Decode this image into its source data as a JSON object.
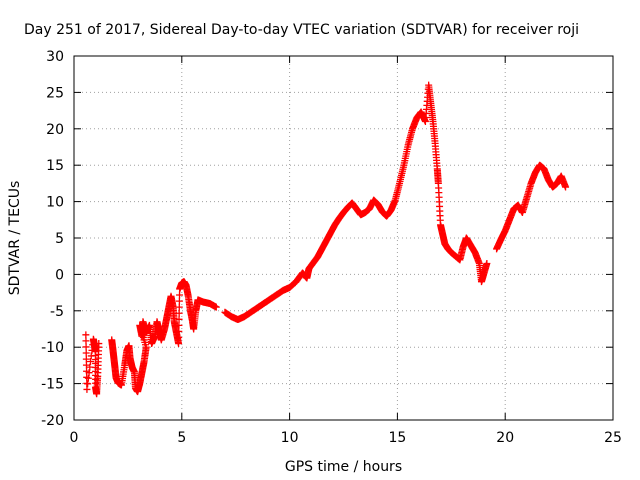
{
  "chart_data": {
    "type": "scatter",
    "title": "Day 251 of 2017, Sidereal Day-to-day VTEC variation (SDTVAR) for receiver roji",
    "xlabel": "GPS time / hours",
    "ylabel": "SDTVAR / TECUs",
    "xlim": [
      0,
      25
    ],
    "ylim": [
      -20,
      30
    ],
    "xticks": [
      0,
      5,
      10,
      15,
      20,
      25
    ],
    "xtick_labels": [
      "0",
      "5",
      "10",
      "15",
      "20",
      "25"
    ],
    "yticks": [
      -20,
      -15,
      -10,
      -5,
      0,
      5,
      10,
      15,
      20,
      25,
      30
    ],
    "ytick_labels": [
      "-20",
      "-15",
      "-10",
      "-5",
      "0",
      "5",
      "10",
      "15",
      "20",
      "25",
      "30"
    ],
    "grid": true,
    "marker": "+",
    "series": [
      {
        "name": "SDTVAR",
        "color": "#ff0000",
        "points": [
          [
            0.55,
            -8.3
          ],
          [
            0.6,
            -15.8
          ],
          [
            0.9,
            -8.9
          ],
          [
            0.95,
            -9.8
          ],
          [
            1.0,
            -10.6
          ],
          [
            1.0,
            -15.5
          ],
          [
            1.05,
            -16.4
          ],
          [
            1.1,
            -14.0
          ],
          [
            1.15,
            -9.5
          ],
          [
            1.75,
            -9.0
          ],
          [
            1.8,
            -10.2
          ],
          [
            1.85,
            -11.5
          ],
          [
            1.9,
            -12.8
          ],
          [
            1.95,
            -14.2
          ],
          [
            2.05,
            -14.9
          ],
          [
            2.2,
            -15.2
          ],
          [
            2.35,
            -12.5
          ],
          [
            2.45,
            -10.5
          ],
          [
            2.55,
            -9.8
          ],
          [
            2.6,
            -11.5
          ],
          [
            2.7,
            -12.8
          ],
          [
            2.8,
            -13.4
          ],
          [
            2.85,
            -15.6
          ],
          [
            2.95,
            -16.1
          ],
          [
            3.05,
            -15.0
          ],
          [
            3.15,
            -13.5
          ],
          [
            3.25,
            -12.0
          ],
          [
            3.35,
            -10.0
          ],
          [
            3.05,
            -7.0
          ],
          [
            3.15,
            -8.5
          ],
          [
            3.2,
            -6.5
          ],
          [
            3.35,
            -8.0
          ],
          [
            3.5,
            -7.0
          ],
          [
            3.6,
            -9.5
          ],
          [
            3.75,
            -8.5
          ],
          [
            3.85,
            -6.5
          ],
          [
            3.95,
            -7.8
          ],
          [
            4.05,
            -9.0
          ],
          [
            4.2,
            -7.5
          ],
          [
            4.3,
            -6.0
          ],
          [
            4.4,
            -4.5
          ],
          [
            4.5,
            -3.0
          ],
          [
            4.6,
            -4.5
          ],
          [
            4.65,
            -6.5
          ],
          [
            4.75,
            -8.0
          ],
          [
            4.85,
            -9.5
          ],
          [
            4.9,
            -2.0
          ],
          [
            5.0,
            -1.2
          ],
          [
            5.1,
            -1.0
          ],
          [
            5.2,
            -1.5
          ],
          [
            5.3,
            -3.0
          ],
          [
            5.4,
            -5.0
          ],
          [
            5.5,
            -6.5
          ],
          [
            5.55,
            -7.5
          ],
          [
            5.65,
            -5.0
          ],
          [
            5.75,
            -3.5
          ],
          [
            6.0,
            -3.8
          ],
          [
            6.3,
            -4.0
          ],
          [
            6.6,
            -4.5
          ],
          [
            7.0,
            -5.2
          ],
          [
            7.3,
            -5.8
          ],
          [
            7.6,
            -6.2
          ],
          [
            7.9,
            -5.8
          ],
          [
            8.2,
            -5.2
          ],
          [
            8.5,
            -4.6
          ],
          [
            8.8,
            -4.0
          ],
          [
            9.1,
            -3.4
          ],
          [
            9.4,
            -2.8
          ],
          [
            9.7,
            -2.2
          ],
          [
            10.0,
            -1.8
          ],
          [
            10.3,
            -1.0
          ],
          [
            10.6,
            0.2
          ],
          [
            10.8,
            -0.5
          ],
          [
            10.9,
            0.8
          ],
          [
            11.1,
            1.6
          ],
          [
            11.3,
            2.4
          ],
          [
            11.5,
            3.5
          ],
          [
            11.7,
            4.6
          ],
          [
            11.9,
            5.7
          ],
          [
            12.1,
            6.8
          ],
          [
            12.3,
            7.7
          ],
          [
            12.5,
            8.5
          ],
          [
            12.7,
            9.2
          ],
          [
            12.9,
            9.8
          ],
          [
            13.1,
            9.0
          ],
          [
            13.3,
            8.2
          ],
          [
            13.5,
            8.5
          ],
          [
            13.7,
            9.0
          ],
          [
            13.9,
            10.2
          ],
          [
            14.1,
            9.6
          ],
          [
            14.3,
            8.6
          ],
          [
            14.5,
            8.0
          ],
          [
            14.7,
            8.8
          ],
          [
            14.9,
            10.2
          ],
          [
            15.1,
            12.5
          ],
          [
            15.3,
            15.0
          ],
          [
            15.5,
            17.8
          ],
          [
            15.7,
            20.0
          ],
          [
            15.9,
            21.5
          ],
          [
            16.1,
            22.3
          ],
          [
            16.3,
            21.0
          ],
          [
            16.45,
            26.0
          ],
          [
            16.55,
            23.5
          ],
          [
            16.65,
            21.0
          ],
          [
            16.75,
            18.0
          ],
          [
            16.85,
            14.5
          ],
          [
            16.9,
            12.5
          ],
          [
            17.0,
            6.8
          ],
          [
            17.1,
            5.5
          ],
          [
            17.2,
            4.2
          ],
          [
            17.35,
            3.5
          ],
          [
            17.5,
            3.0
          ],
          [
            17.7,
            2.5
          ],
          [
            17.9,
            2.0
          ],
          [
            18.05,
            3.8
          ],
          [
            18.2,
            5.0
          ],
          [
            18.4,
            4.0
          ],
          [
            18.6,
            3.0
          ],
          [
            18.8,
            1.5
          ],
          [
            18.9,
            -1.0
          ],
          [
            19.0,
            0.0
          ],
          [
            19.15,
            1.5
          ],
          [
            19.6,
            3.5
          ],
          [
            19.8,
            4.8
          ],
          [
            20.0,
            6.0
          ],
          [
            20.2,
            7.5
          ],
          [
            20.4,
            9.0
          ],
          [
            20.6,
            9.5
          ],
          [
            20.8,
            8.5
          ],
          [
            21.0,
            10.5
          ],
          [
            21.2,
            12.5
          ],
          [
            21.4,
            14.0
          ],
          [
            21.6,
            15.0
          ],
          [
            21.8,
            14.5
          ],
          [
            22.0,
            13.0
          ],
          [
            22.2,
            12.0
          ],
          [
            22.4,
            12.5
          ],
          [
            22.6,
            13.5
          ],
          [
            22.8,
            12.0
          ]
        ]
      }
    ]
  }
}
